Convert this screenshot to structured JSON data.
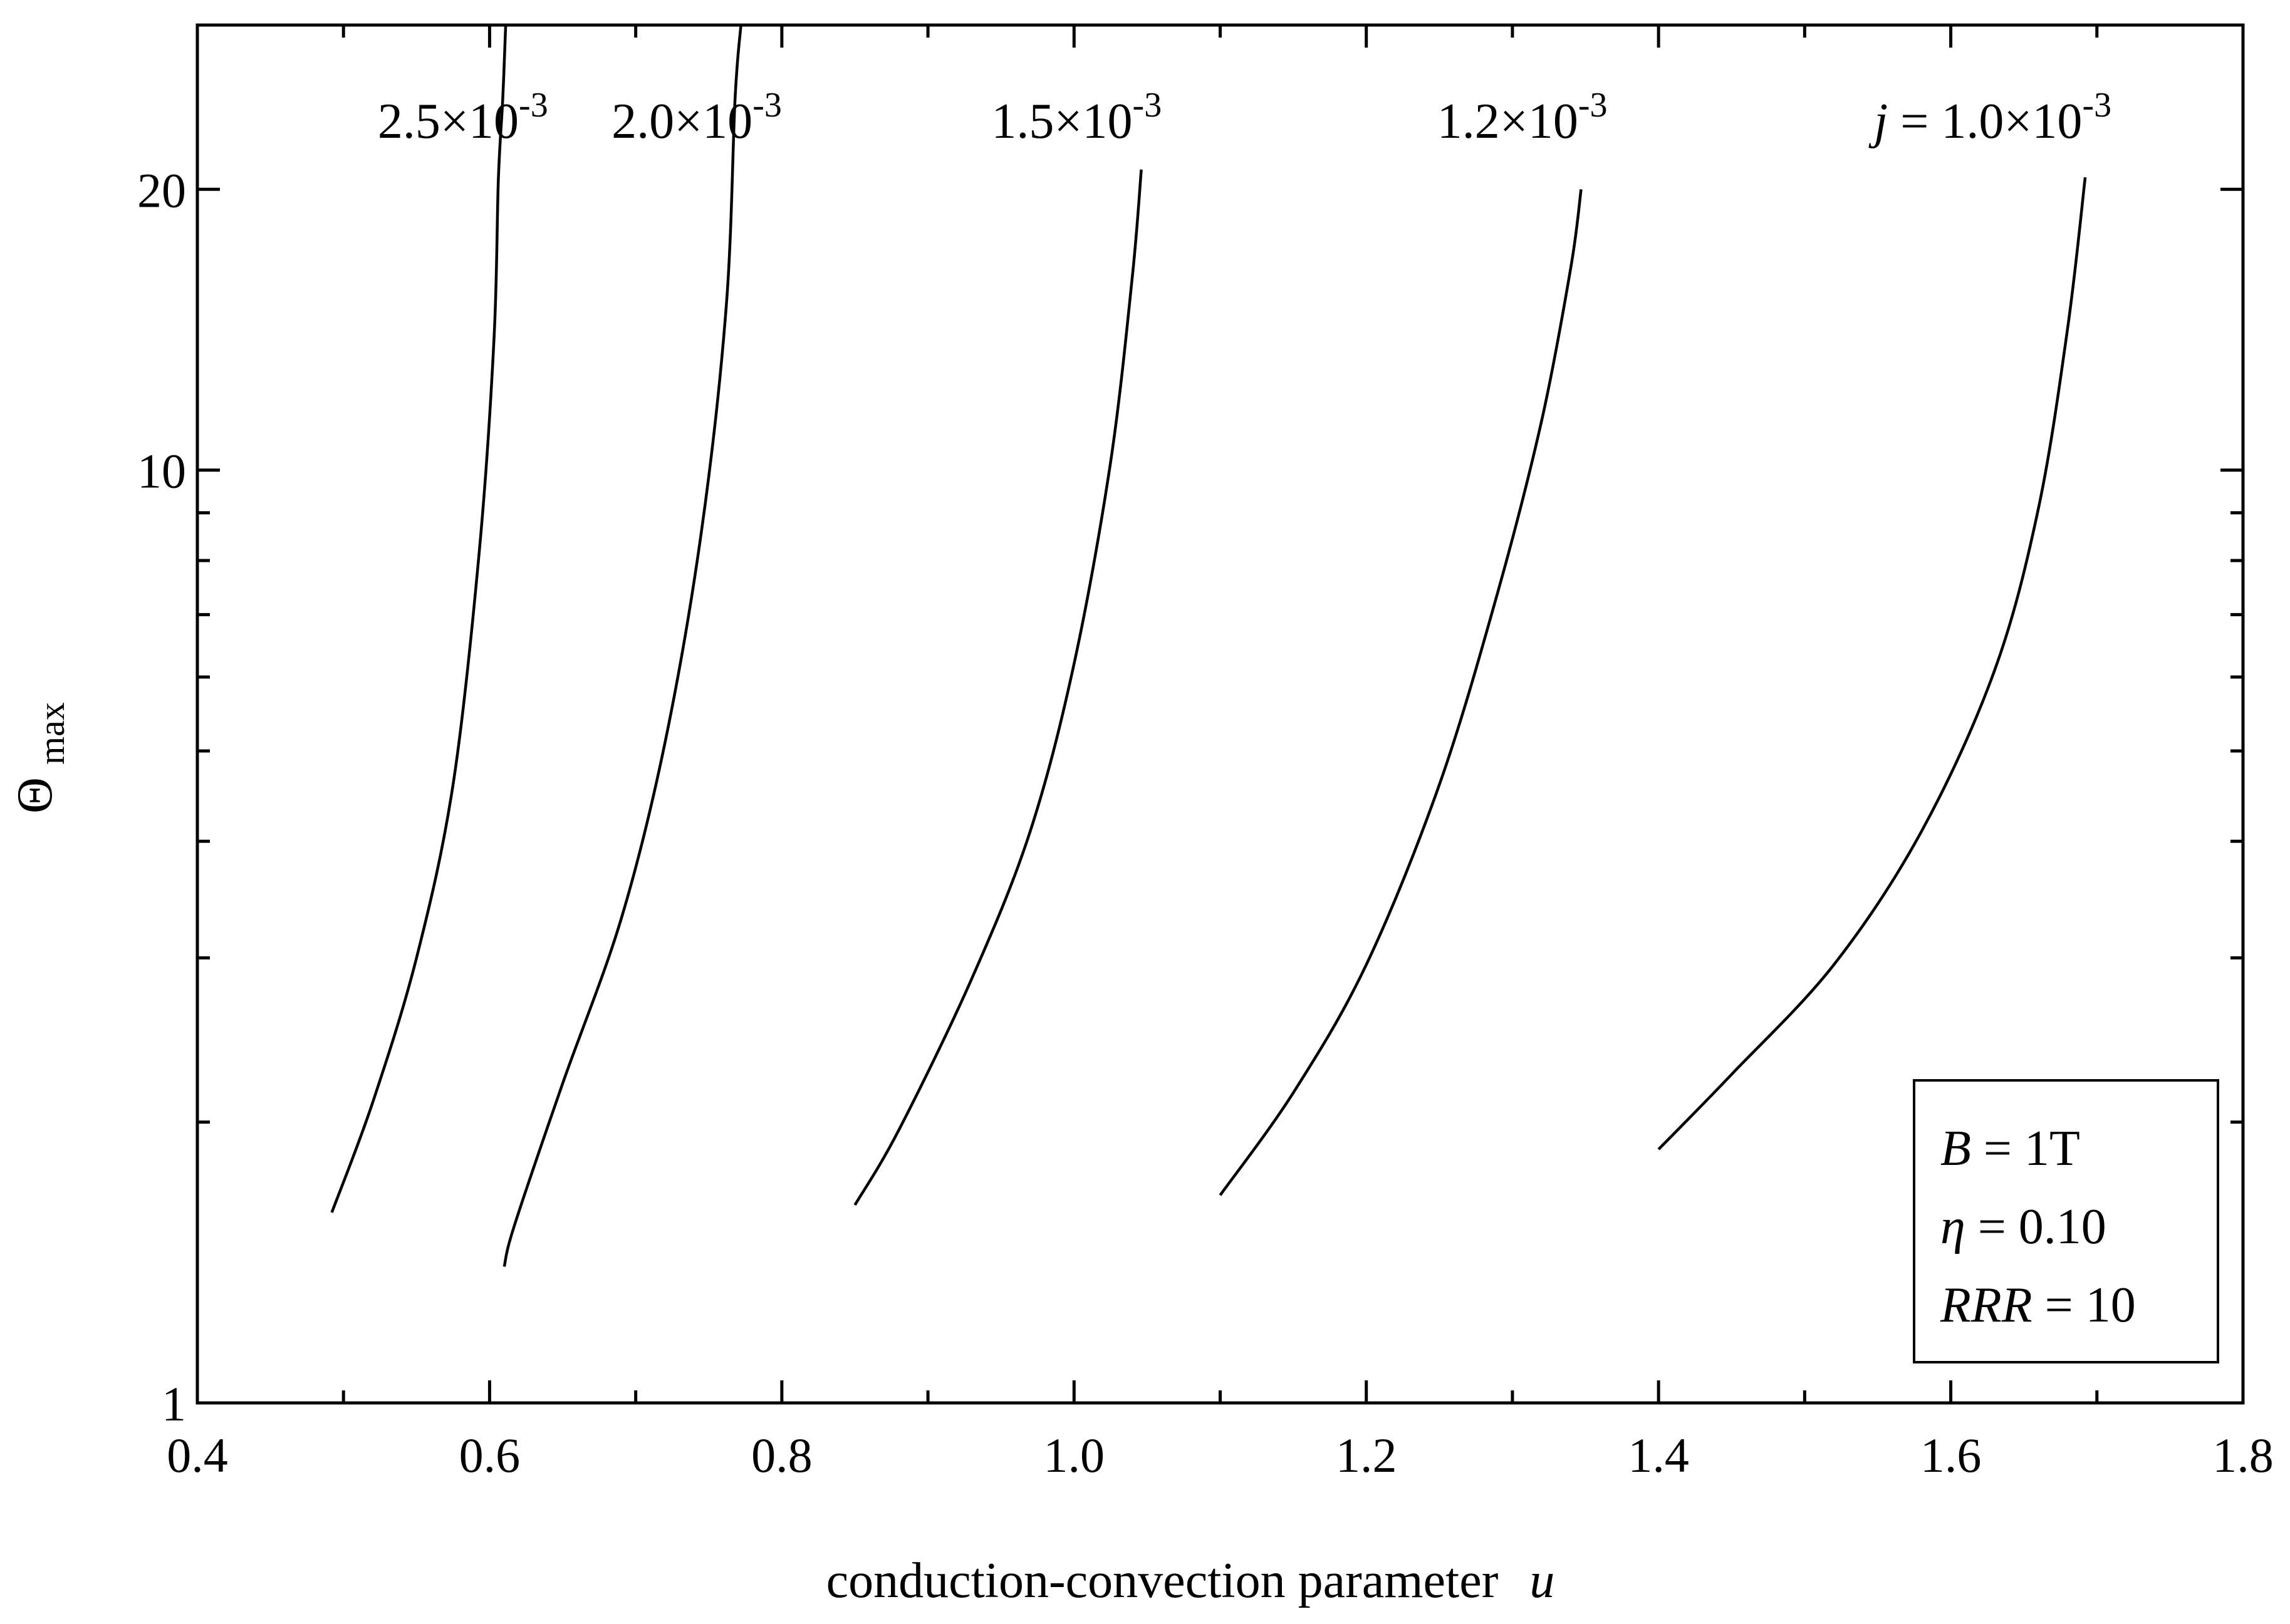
{
  "chart_data": {
    "type": "line",
    "xlabel_text": "conduction-convection parameter",
    "xlabel_var": "u",
    "ylabel_main": "Θ",
    "ylabel_sub": "max",
    "xlim": [
      0.4,
      1.8
    ],
    "ylim": [
      1,
      30
    ],
    "yscale": "log",
    "x_ticks": [
      "0.4",
      "0.6",
      "0.8",
      "1.0",
      "1.2",
      "1.4",
      "1.6",
      "1.8"
    ],
    "x_tick_values": [
      0.4,
      0.6,
      0.8,
      1.0,
      1.2,
      1.4,
      1.6,
      1.8
    ],
    "y_ticks": [
      "1",
      "10",
      "20"
    ],
    "y_tick_values": [
      1,
      10,
      20
    ],
    "series": [
      {
        "label_prefix": "",
        "label_mantissa": "2.5",
        "label_exp": "-3",
        "points": [
          [
            0.492,
            1.6
          ],
          [
            0.52,
            2.1
          ],
          [
            0.55,
            3.0
          ],
          [
            0.575,
            4.6
          ],
          [
            0.593,
            8.2
          ],
          [
            0.603,
            13.8
          ],
          [
            0.606,
            20.5
          ],
          [
            0.609,
            25
          ],
          [
            0.611,
            30
          ]
        ]
      },
      {
        "label_prefix": "",
        "label_mantissa": "2.0",
        "label_exp": "-3",
        "points": [
          [
            0.61,
            1.4
          ],
          [
            0.617,
            1.55
          ],
          [
            0.65,
            2.2
          ],
          [
            0.69,
            3.3
          ],
          [
            0.72,
            5.1
          ],
          [
            0.745,
            8.6
          ],
          [
            0.762,
            15
          ],
          [
            0.768,
            25
          ],
          [
            0.772,
            30
          ]
        ]
      },
      {
        "label_prefix": "",
        "label_mantissa": "1.5",
        "label_exp": "-3",
        "points": [
          [
            0.85,
            1.63
          ],
          [
            0.88,
            1.96
          ],
          [
            0.93,
            2.85
          ],
          [
            0.97,
            4.1
          ],
          [
            1.0,
            6.2
          ],
          [
            1.025,
            10.2
          ],
          [
            1.04,
            16.2
          ],
          [
            1.046,
            21.0
          ]
        ]
      },
      {
        "label_prefix": "",
        "label_mantissa": "1.2",
        "label_exp": "-3",
        "points": [
          [
            1.1,
            1.67
          ],
          [
            1.15,
            2.15
          ],
          [
            1.2,
            2.95
          ],
          [
            1.25,
            4.6
          ],
          [
            1.29,
            7.4
          ],
          [
            1.32,
            11.3
          ],
          [
            1.34,
            16.5
          ],
          [
            1.347,
            20.0
          ]
        ]
      },
      {
        "label_prefix": "j = ",
        "label_mantissa": "1.0",
        "label_exp": "-3",
        "points": [
          [
            1.4,
            1.87
          ],
          [
            1.45,
            2.25
          ],
          [
            1.52,
            2.95
          ],
          [
            1.58,
            4.1
          ],
          [
            1.63,
            6.1
          ],
          [
            1.66,
            9.1
          ],
          [
            1.68,
            14.2
          ],
          [
            1.692,
            20.6
          ]
        ]
      }
    ],
    "legend_lines": [
      {
        "var": "B",
        "rest": " = 1T"
      },
      {
        "var": "η",
        "rest": " = 0.10"
      },
      {
        "var": "RRR",
        "rest": " = 10"
      }
    ]
  }
}
